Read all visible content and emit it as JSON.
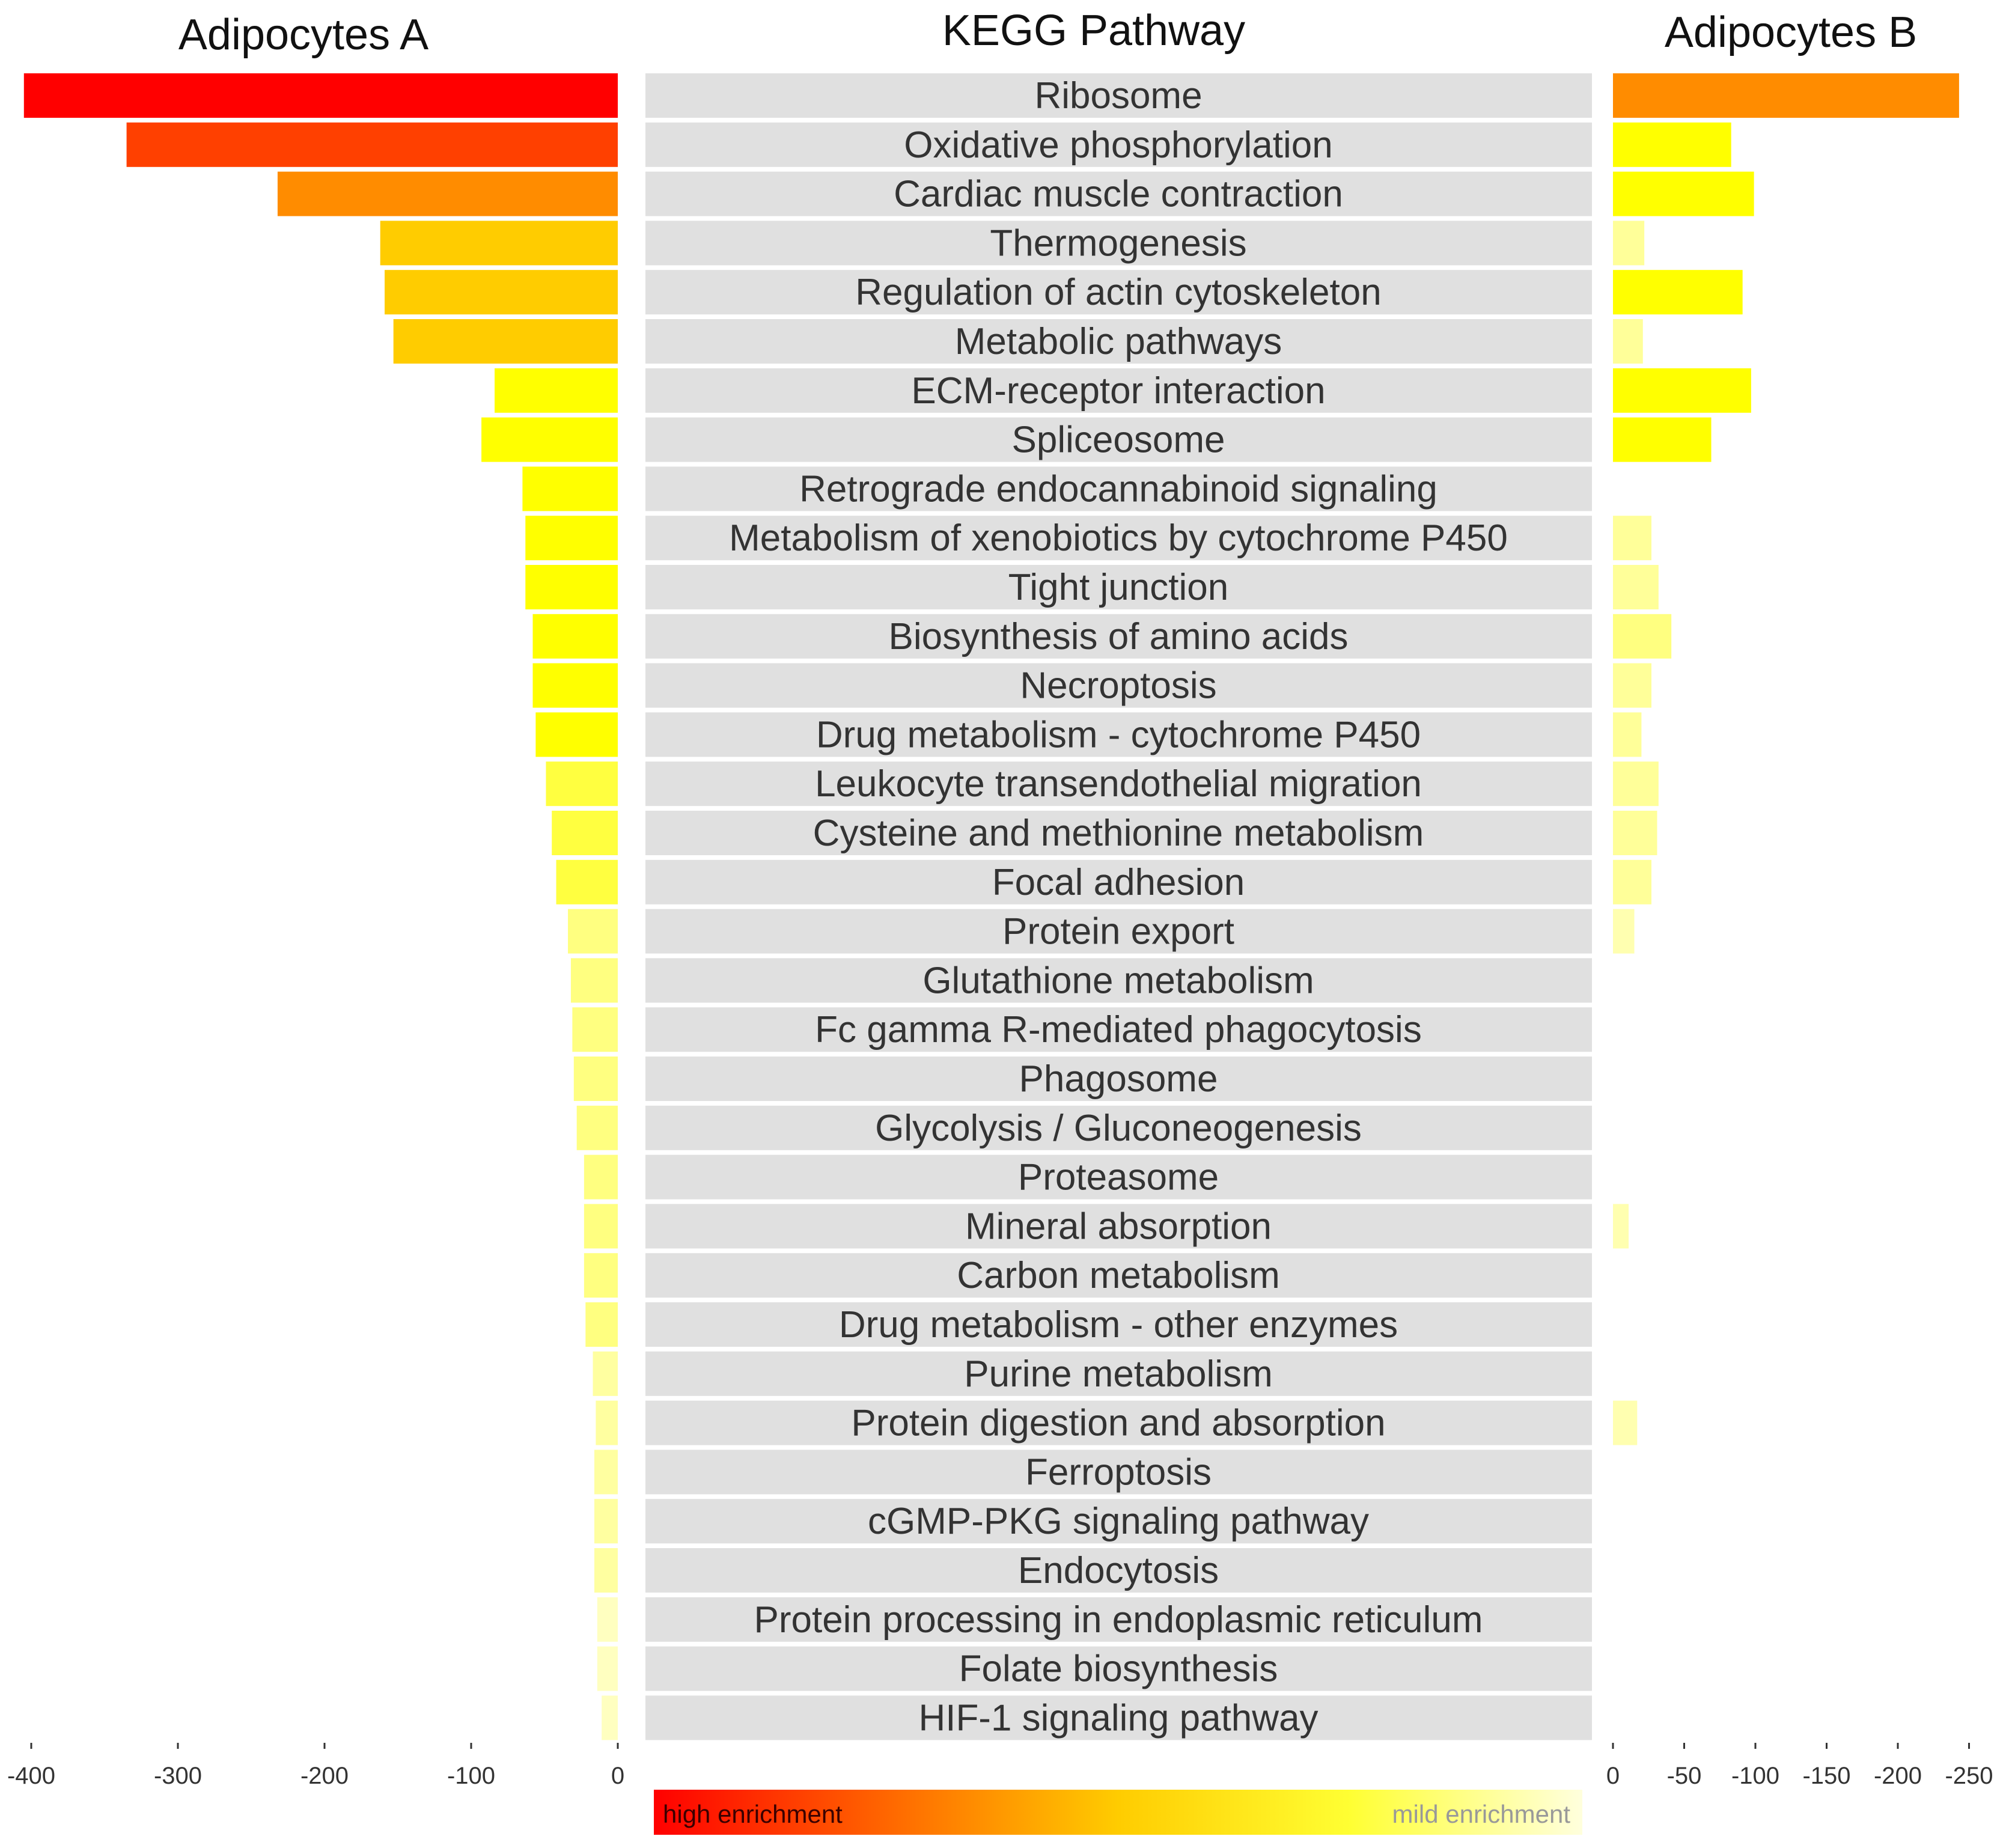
{
  "chart_data": {
    "type": "bar",
    "titles": {
      "left": "Adipocytes A",
      "center": "KEGG Pathway",
      "right": "Adipocytes B"
    },
    "categories": [
      "Ribosome",
      "Oxidative phosphorylation",
      "Cardiac muscle contraction",
      "Thermogenesis",
      "Regulation of actin cytoskeleton",
      "Metabolic pathways",
      "ECM-receptor interaction",
      "Spliceosome",
      "Retrograde endocannabinoid signaling",
      "Metabolism of xenobiotics by cytochrome P450",
      "Tight junction",
      "Biosynthesis of amino acids",
      "Necroptosis",
      "Drug metabolism - cytochrome P450",
      "Leukocyte transendothelial migration",
      "Cysteine and methionine metabolism",
      "Focal adhesion",
      "Protein export",
      "Glutathione metabolism",
      "Fc gamma R-mediated phagocytosis",
      "Phagosome",
      "Glycolysis / Gluconeogenesis",
      "Proteasome",
      "Mineral absorption",
      "Carbon metabolism",
      "Drug metabolism - other enzymes",
      "Purine metabolism",
      "Protein digestion and absorption",
      "Ferroptosis",
      "cGMP-PKG signaling pathway",
      "Endocytosis",
      "Protein processing in endoplasmic reticulum",
      "Folate biosynthesis",
      "HIF-1 signaling pathway"
    ],
    "series": [
      {
        "name": "Adipocytes A",
        "values": [
          -405,
          -335,
          -232,
          -162,
          -159,
          -153,
          -84,
          -93,
          -65,
          -63,
          -63,
          -58,
          -58,
          -56,
          -49,
          -45,
          -42,
          -34,
          -32,
          -31,
          -30,
          -28,
          -23,
          -23,
          -23,
          -22,
          -17,
          -15,
          -16,
          -16,
          -16,
          -14,
          -14,
          -11
        ],
        "colors": [
          "#ff0000",
          "#ff4000",
          "#ff8c00",
          "#ffcc00",
          "#ffcc00",
          "#ffcc00",
          "#ffff00",
          "#ffff00",
          "#ffff00",
          "#ffff00",
          "#ffff00",
          "#ffff00",
          "#ffff00",
          "#ffff00",
          "#ffff40",
          "#ffff40",
          "#ffff40",
          "#ffff80",
          "#ffff80",
          "#ffff80",
          "#ffff80",
          "#ffff80",
          "#ffff80",
          "#ffff80",
          "#ffff80",
          "#ffff80",
          "#ffffa0",
          "#ffffa0",
          "#ffffa0",
          "#ffffa0",
          "#ffffa0",
          "#ffffc0",
          "#ffffc0",
          "#ffffc0"
        ]
      },
      {
        "name": "Adipocytes B",
        "values": [
          -243,
          -83,
          -99,
          -22,
          -91,
          -21,
          -97,
          -69,
          0,
          -27,
          -32,
          -41,
          -27,
          -20,
          -32,
          -31,
          -27,
          -15,
          0,
          0,
          0,
          0,
          0,
          -11,
          0,
          0,
          0,
          -17,
          0,
          0,
          0,
          0,
          0,
          0
        ],
        "colors": [
          "#ff8c00",
          "#ffff00",
          "#ffff00",
          "#ffff99",
          "#ffff00",
          "#ffff99",
          "#ffff00",
          "#ffff00",
          "#ffffff",
          "#ffff99",
          "#ffff99",
          "#ffff80",
          "#ffff99",
          "#ffff99",
          "#ffff99",
          "#ffff99",
          "#ffff99",
          "#ffffb0",
          "#ffffff",
          "#ffffff",
          "#ffffff",
          "#ffffff",
          "#ffffff",
          "#ffffb0",
          "#ffffff",
          "#ffffff",
          "#ffffff",
          "#ffffb0",
          "#ffffff",
          "#ffffff",
          "#ffffff",
          "#ffffff",
          "#ffffff",
          "#ffffff"
        ]
      }
    ],
    "axes": {
      "left": {
        "xlim": [
          -405,
          0
        ],
        "ticks": [
          -400,
          -300,
          -200,
          -100,
          0
        ],
        "tick_labels": [
          "-400",
          "-300",
          "-200",
          "-100",
          "0"
        ]
      },
      "right": {
        "xlim": [
          0,
          -250
        ],
        "ticks": [
          0,
          -50,
          -100,
          -150,
          -200,
          -250
        ],
        "tick_labels": [
          "0",
          "-50",
          "-100",
          "-150",
          "-200",
          "-250"
        ]
      }
    },
    "legend": {
      "high_label": "high enrichment",
      "mild_label": "mild enrichment",
      "gradient_colors": [
        "#ff0000",
        "#ff6600",
        "#ffcc00",
        "#ffff33",
        "#ffffdd"
      ]
    },
    "label_background": "#e0e0e0",
    "grid": false
  }
}
